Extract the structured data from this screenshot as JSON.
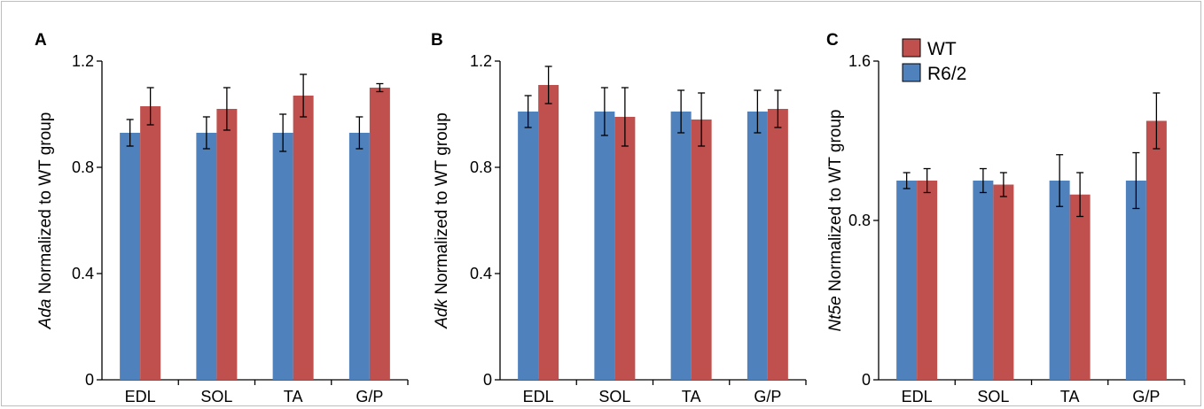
{
  "chart_data": [
    {
      "type": "bar",
      "panel": "A",
      "ylabel_gene": "Ada",
      "ylabel_rest": " Normalized to WT group",
      "categories": [
        "EDL",
        "SOL",
        "TA",
        "G/P"
      ],
      "ylim": [
        0,
        1.2
      ],
      "yticks": [
        "0",
        "0.4",
        "0.8",
        "1.2"
      ],
      "series": [
        {
          "name": "R6/2",
          "color": "#4f81bd",
          "values": [
            0.93,
            0.93,
            0.93,
            0.93
          ],
          "errors": [
            0.05,
            0.06,
            0.07,
            0.06
          ]
        },
        {
          "name": "WT",
          "color": "#c0504d",
          "values": [
            1.03,
            1.02,
            1.07,
            1.1
          ],
          "errors": [
            0.07,
            0.08,
            0.08,
            0.015
          ]
        }
      ]
    },
    {
      "type": "bar",
      "panel": "B",
      "ylabel_gene": "Adk",
      "ylabel_rest": " Normalized to WT group",
      "categories": [
        "EDL",
        "SOL",
        "TA",
        "G/P"
      ],
      "ylim": [
        0,
        1.2
      ],
      "yticks": [
        "0",
        "0.4",
        "0.8",
        "1.2"
      ],
      "series": [
        {
          "name": "R6/2",
          "color": "#4f81bd",
          "values": [
            1.01,
            1.01,
            1.01,
            1.01
          ],
          "errors": [
            0.06,
            0.09,
            0.08,
            0.08
          ]
        },
        {
          "name": "WT",
          "color": "#c0504d",
          "values": [
            1.11,
            0.99,
            0.98,
            1.02
          ],
          "errors": [
            0.07,
            0.11,
            0.1,
            0.07
          ]
        }
      ]
    },
    {
      "type": "bar",
      "panel": "C",
      "ylabel_gene": "Nt5e",
      "ylabel_rest": " Normalized to WT group",
      "categories": [
        "EDL",
        "SOL",
        "TA",
        "G/P"
      ],
      "ylim": [
        0,
        1.6
      ],
      "yticks": [
        "0",
        "0.8",
        "1.6"
      ],
      "legend": {
        "position": "top-left",
        "entries": [
          "WT",
          "R6/2"
        ]
      },
      "series": [
        {
          "name": "R6/2",
          "color": "#4f81bd",
          "values": [
            1.0,
            1.0,
            1.0,
            1.0
          ],
          "errors": [
            0.04,
            0.06,
            0.13,
            0.14
          ]
        },
        {
          "name": "WT",
          "color": "#c0504d",
          "values": [
            1.0,
            0.98,
            0.93,
            1.3
          ],
          "errors": [
            0.06,
            0.06,
            0.11,
            0.14
          ]
        }
      ]
    }
  ]
}
